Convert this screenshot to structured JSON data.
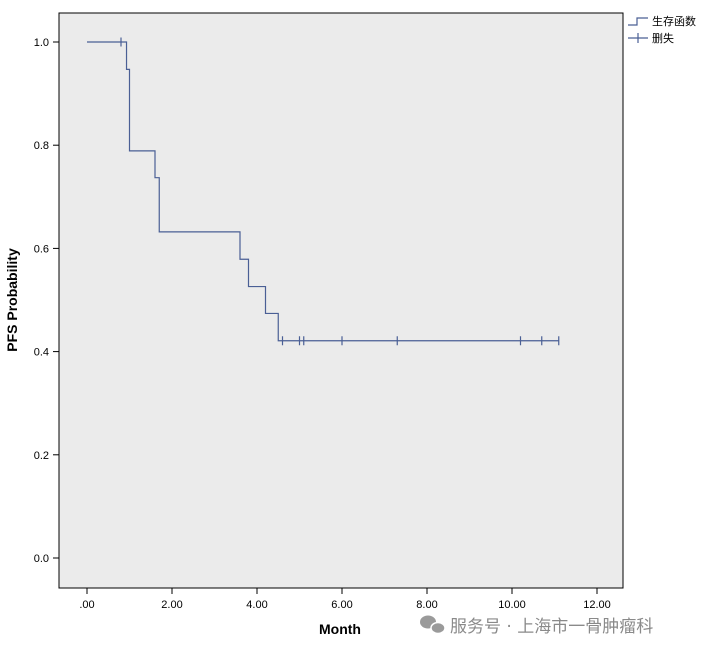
{
  "chart_data": {
    "type": "line",
    "title": "",
    "xlabel": "Month",
    "ylabel": "PFS Probability",
    "xlim": [
      0,
      12
    ],
    "ylim": [
      0,
      1
    ],
    "x_ticks": [
      0,
      2,
      4,
      6,
      8,
      10,
      12
    ],
    "x_tick_labels": [
      ".00",
      "2.00",
      "4.00",
      "6.00",
      "8.00",
      "10.00",
      "12.00"
    ],
    "y_ticks": [
      0,
      0.2,
      0.4,
      0.6,
      0.8,
      1.0
    ],
    "y_tick_labels": [
      "0.0",
      "0.2",
      "0.4",
      "0.6",
      "0.8",
      "1.0"
    ],
    "grid": false,
    "legend_position": "top-right",
    "plot_background": "#ebebeb",
    "line_color": "#4a5f95",
    "legend": [
      {
        "label": "生存函数",
        "marker": "step"
      },
      {
        "label": "删失",
        "marker": "plus"
      }
    ],
    "series": [
      {
        "name": "生存函数",
        "step_points": [
          {
            "x": 0.0,
            "y": 1.0
          },
          {
            "x": 0.93,
            "y": 0.947
          },
          {
            "x": 1.0,
            "y": 0.789
          },
          {
            "x": 1.6,
            "y": 0.737
          },
          {
            "x": 1.7,
            "y": 0.632
          },
          {
            "x": 3.6,
            "y": 0.579
          },
          {
            "x": 3.8,
            "y": 0.526
          },
          {
            "x": 4.2,
            "y": 0.474
          },
          {
            "x": 4.5,
            "y": 0.421
          }
        ],
        "end_x": 11.1
      },
      {
        "name": "删失",
        "points": [
          {
            "x": 0.8,
            "y": 1.0
          },
          {
            "x": 4.6,
            "y": 0.421
          },
          {
            "x": 5.0,
            "y": 0.421
          },
          {
            "x": 5.1,
            "y": 0.421
          },
          {
            "x": 6.0,
            "y": 0.421
          },
          {
            "x": 7.3,
            "y": 0.421
          },
          {
            "x": 10.2,
            "y": 0.421
          },
          {
            "x": 10.7,
            "y": 0.421
          },
          {
            "x": 11.1,
            "y": 0.421
          }
        ]
      }
    ]
  },
  "watermark": {
    "icon": "wechat-icon",
    "text": "服务号 · 上海市一骨肿瘤科"
  }
}
